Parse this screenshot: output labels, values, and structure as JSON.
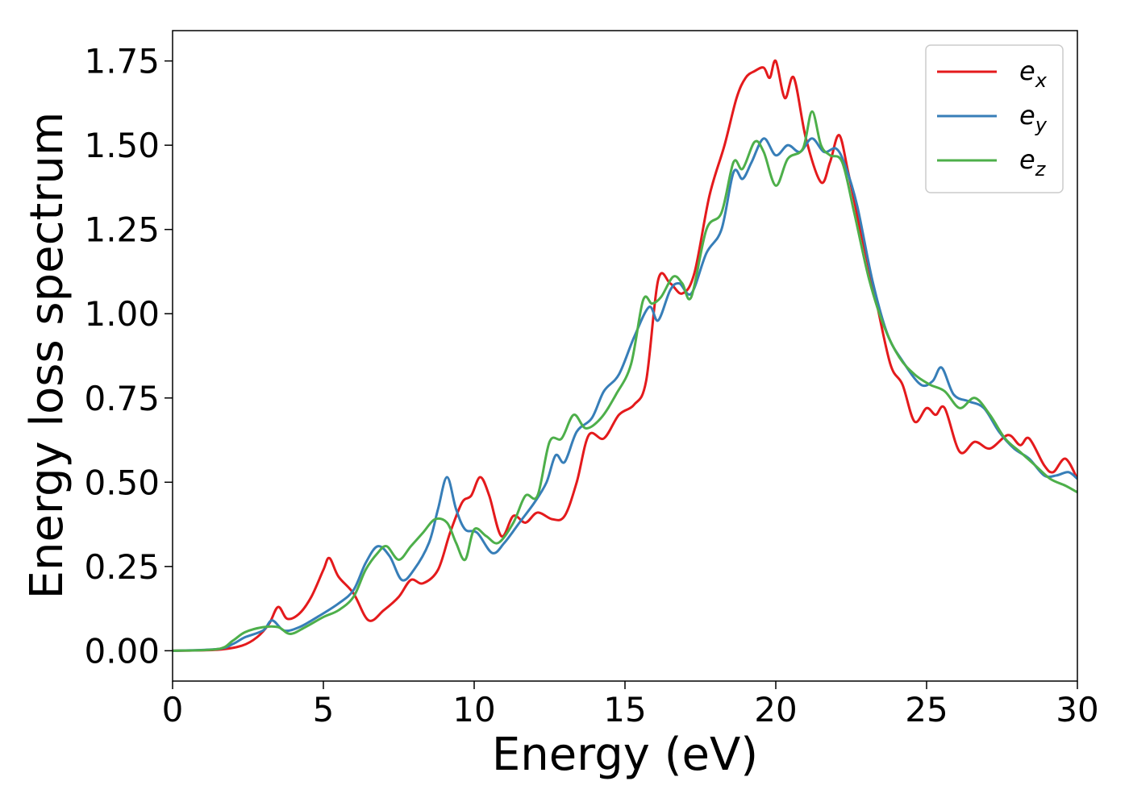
{
  "chart_data": {
    "type": "line",
    "xlabel": "Energy (eV)",
    "ylabel": "Energy loss spectrum",
    "xlim": [
      0,
      30
    ],
    "ylim": [
      -0.09,
      1.84
    ],
    "xticks": [
      0,
      5,
      10,
      15,
      20,
      25,
      30
    ],
    "xtick_labels": [
      "0",
      "5",
      "10",
      "15",
      "20",
      "25",
      "30"
    ],
    "yticks": [
      0.0,
      0.25,
      0.5,
      0.75,
      1.0,
      1.25,
      1.5,
      1.75
    ],
    "ytick_labels": [
      "0.00",
      "0.25",
      "0.50",
      "0.75",
      "1.00",
      "1.25",
      "1.50",
      "1.75"
    ],
    "grid": false,
    "legend_position": "top-right",
    "series": [
      {
        "name": "e_x",
        "label_base": "e",
        "label_sub": "x",
        "color": "#e41a1c",
        "points": [
          [
            0,
            0
          ],
          [
            1.5,
            0.003
          ],
          [
            2.3,
            0.015
          ],
          [
            2.8,
            0.04
          ],
          [
            3.2,
            0.08
          ],
          [
            3.5,
            0.13
          ],
          [
            3.8,
            0.095
          ],
          [
            4.2,
            0.11
          ],
          [
            4.6,
            0.16
          ],
          [
            5.0,
            0.24
          ],
          [
            5.2,
            0.275
          ],
          [
            5.5,
            0.22
          ],
          [
            6.0,
            0.17
          ],
          [
            6.5,
            0.09
          ],
          [
            7.0,
            0.12
          ],
          [
            7.5,
            0.16
          ],
          [
            7.9,
            0.21
          ],
          [
            8.3,
            0.2
          ],
          [
            8.8,
            0.24
          ],
          [
            9.2,
            0.35
          ],
          [
            9.6,
            0.44
          ],
          [
            9.9,
            0.46
          ],
          [
            10.2,
            0.515
          ],
          [
            10.5,
            0.46
          ],
          [
            10.9,
            0.34
          ],
          [
            11.3,
            0.4
          ],
          [
            11.7,
            0.38
          ],
          [
            12.1,
            0.41
          ],
          [
            12.6,
            0.39
          ],
          [
            13.0,
            0.4
          ],
          [
            13.4,
            0.5
          ],
          [
            13.8,
            0.64
          ],
          [
            14.3,
            0.63
          ],
          [
            14.8,
            0.7
          ],
          [
            15.3,
            0.73
          ],
          [
            15.7,
            0.8
          ],
          [
            16.1,
            1.1
          ],
          [
            16.5,
            1.09
          ],
          [
            16.9,
            1.06
          ],
          [
            17.3,
            1.12
          ],
          [
            17.8,
            1.35
          ],
          [
            18.3,
            1.5
          ],
          [
            18.7,
            1.64
          ],
          [
            19.0,
            1.7
          ],
          [
            19.3,
            1.72
          ],
          [
            19.6,
            1.73
          ],
          [
            19.8,
            1.7
          ],
          [
            20.0,
            1.75
          ],
          [
            20.3,
            1.64
          ],
          [
            20.6,
            1.7
          ],
          [
            21.0,
            1.52
          ],
          [
            21.5,
            1.39
          ],
          [
            21.8,
            1.45
          ],
          [
            22.1,
            1.53
          ],
          [
            22.4,
            1.42
          ],
          [
            22.8,
            1.25
          ],
          [
            23.3,
            1.05
          ],
          [
            23.8,
            0.85
          ],
          [
            24.2,
            0.79
          ],
          [
            24.6,
            0.68
          ],
          [
            25.0,
            0.72
          ],
          [
            25.3,
            0.7
          ],
          [
            25.6,
            0.72
          ],
          [
            26.1,
            0.59
          ],
          [
            26.6,
            0.62
          ],
          [
            27.1,
            0.6
          ],
          [
            27.7,
            0.64
          ],
          [
            28.1,
            0.61
          ],
          [
            28.4,
            0.63
          ],
          [
            28.9,
            0.55
          ],
          [
            29.2,
            0.53
          ],
          [
            29.6,
            0.57
          ],
          [
            30.0,
            0.51
          ]
        ]
      },
      {
        "name": "e_y",
        "label_base": "e",
        "label_sub": "y",
        "color": "#377eb8",
        "points": [
          [
            0,
            0
          ],
          [
            1.5,
            0.005
          ],
          [
            2.0,
            0.02
          ],
          [
            2.4,
            0.04
          ],
          [
            3.0,
            0.06
          ],
          [
            3.3,
            0.09
          ],
          [
            3.7,
            0.06
          ],
          [
            4.2,
            0.07
          ],
          [
            4.8,
            0.1
          ],
          [
            5.5,
            0.14
          ],
          [
            6.0,
            0.18
          ],
          [
            6.4,
            0.26
          ],
          [
            6.8,
            0.31
          ],
          [
            7.2,
            0.28
          ],
          [
            7.6,
            0.21
          ],
          [
            8.0,
            0.24
          ],
          [
            8.5,
            0.32
          ],
          [
            8.8,
            0.42
          ],
          [
            9.1,
            0.515
          ],
          [
            9.4,
            0.42
          ],
          [
            9.7,
            0.36
          ],
          [
            10.1,
            0.35
          ],
          [
            10.6,
            0.29
          ],
          [
            11.0,
            0.32
          ],
          [
            11.5,
            0.38
          ],
          [
            12.0,
            0.44
          ],
          [
            12.4,
            0.5
          ],
          [
            12.7,
            0.58
          ],
          [
            13.0,
            0.56
          ],
          [
            13.4,
            0.65
          ],
          [
            13.9,
            0.69
          ],
          [
            14.3,
            0.77
          ],
          [
            14.8,
            0.82
          ],
          [
            15.3,
            0.93
          ],
          [
            15.8,
            1.02
          ],
          [
            16.1,
            0.98
          ],
          [
            16.5,
            1.07
          ],
          [
            16.8,
            1.09
          ],
          [
            17.2,
            1.06
          ],
          [
            17.7,
            1.18
          ],
          [
            18.2,
            1.25
          ],
          [
            18.6,
            1.42
          ],
          [
            18.9,
            1.4
          ],
          [
            19.2,
            1.45
          ],
          [
            19.6,
            1.52
          ],
          [
            20.0,
            1.47
          ],
          [
            20.4,
            1.5
          ],
          [
            20.8,
            1.48
          ],
          [
            21.2,
            1.52
          ],
          [
            21.6,
            1.48
          ],
          [
            22.0,
            1.49
          ],
          [
            22.3,
            1.44
          ],
          [
            22.7,
            1.32
          ],
          [
            23.2,
            1.1
          ],
          [
            23.7,
            0.94
          ],
          [
            24.2,
            0.86
          ],
          [
            24.8,
            0.79
          ],
          [
            25.2,
            0.8
          ],
          [
            25.5,
            0.84
          ],
          [
            25.9,
            0.76
          ],
          [
            26.4,
            0.74
          ],
          [
            26.9,
            0.72
          ],
          [
            27.4,
            0.65
          ],
          [
            27.9,
            0.6
          ],
          [
            28.4,
            0.57
          ],
          [
            28.9,
            0.52
          ],
          [
            29.3,
            0.52
          ],
          [
            29.7,
            0.53
          ],
          [
            30.0,
            0.51
          ]
        ]
      },
      {
        "name": "e_z",
        "label_base": "e",
        "label_sub": "z",
        "color": "#4daf4a",
        "points": [
          [
            0,
            0
          ],
          [
            1.5,
            0.005
          ],
          [
            2.0,
            0.03
          ],
          [
            2.4,
            0.055
          ],
          [
            3.0,
            0.07
          ],
          [
            3.5,
            0.07
          ],
          [
            3.9,
            0.05
          ],
          [
            4.4,
            0.07
          ],
          [
            5.0,
            0.1
          ],
          [
            5.5,
            0.12
          ],
          [
            6.0,
            0.16
          ],
          [
            6.4,
            0.24
          ],
          [
            6.8,
            0.29
          ],
          [
            7.1,
            0.31
          ],
          [
            7.5,
            0.27
          ],
          [
            7.9,
            0.31
          ],
          [
            8.3,
            0.35
          ],
          [
            8.7,
            0.39
          ],
          [
            9.1,
            0.38
          ],
          [
            9.4,
            0.32
          ],
          [
            9.7,
            0.27
          ],
          [
            10.0,
            0.36
          ],
          [
            10.4,
            0.34
          ],
          [
            10.8,
            0.32
          ],
          [
            11.3,
            0.38
          ],
          [
            11.7,
            0.46
          ],
          [
            12.1,
            0.46
          ],
          [
            12.5,
            0.62
          ],
          [
            12.9,
            0.63
          ],
          [
            13.3,
            0.7
          ],
          [
            13.7,
            0.66
          ],
          [
            14.2,
            0.69
          ],
          [
            14.7,
            0.76
          ],
          [
            15.2,
            0.85
          ],
          [
            15.6,
            1.04
          ],
          [
            15.9,
            1.03
          ],
          [
            16.2,
            1.05
          ],
          [
            16.6,
            1.11
          ],
          [
            16.9,
            1.09
          ],
          [
            17.2,
            1.05
          ],
          [
            17.7,
            1.25
          ],
          [
            18.2,
            1.3
          ],
          [
            18.6,
            1.45
          ],
          [
            18.9,
            1.43
          ],
          [
            19.3,
            1.51
          ],
          [
            19.6,
            1.48
          ],
          [
            20.0,
            1.38
          ],
          [
            20.4,
            1.46
          ],
          [
            20.9,
            1.49
          ],
          [
            21.2,
            1.6
          ],
          [
            21.5,
            1.5
          ],
          [
            21.8,
            1.47
          ],
          [
            22.2,
            1.45
          ],
          [
            22.6,
            1.3
          ],
          [
            23.1,
            1.1
          ],
          [
            23.6,
            0.96
          ],
          [
            24.1,
            0.87
          ],
          [
            24.6,
            0.82
          ],
          [
            25.1,
            0.79
          ],
          [
            25.6,
            0.77
          ],
          [
            26.1,
            0.72
          ],
          [
            26.6,
            0.75
          ],
          [
            27.1,
            0.7
          ],
          [
            27.6,
            0.63
          ],
          [
            28.1,
            0.59
          ],
          [
            28.6,
            0.55
          ],
          [
            29.1,
            0.51
          ],
          [
            29.6,
            0.49
          ],
          [
            30.0,
            0.47
          ]
        ]
      }
    ]
  }
}
